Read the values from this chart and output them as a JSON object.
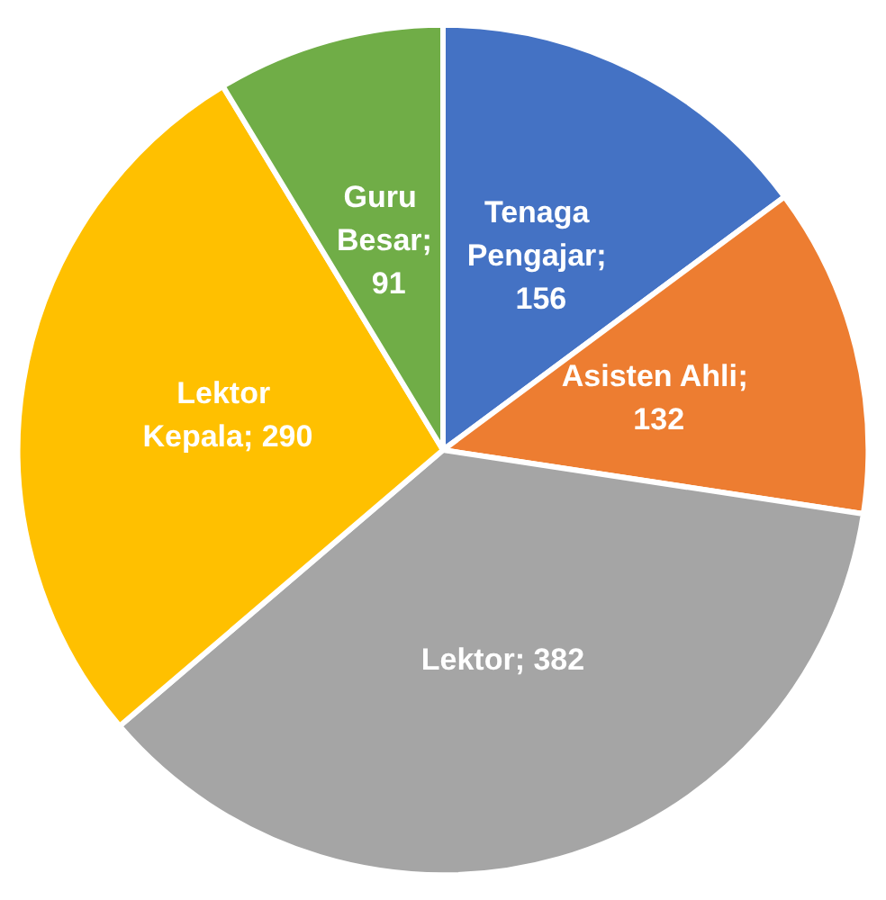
{
  "chart_data": {
    "type": "pie",
    "categories": [
      "Tenaga Pengajar",
      "Asisten Ahli",
      "Lektor",
      "Lektor Kepala",
      "Guru Besar"
    ],
    "values": [
      156,
      132,
      382,
      290,
      91
    ],
    "colors": [
      "#4472c4",
      "#ed7d31",
      "#a5a5a5",
      "#ffc000",
      "#70ad47"
    ],
    "value_labels": [
      "; 156",
      "; 132",
      "; 382",
      "; 290",
      "; 91"
    ],
    "legend": false
  }
}
